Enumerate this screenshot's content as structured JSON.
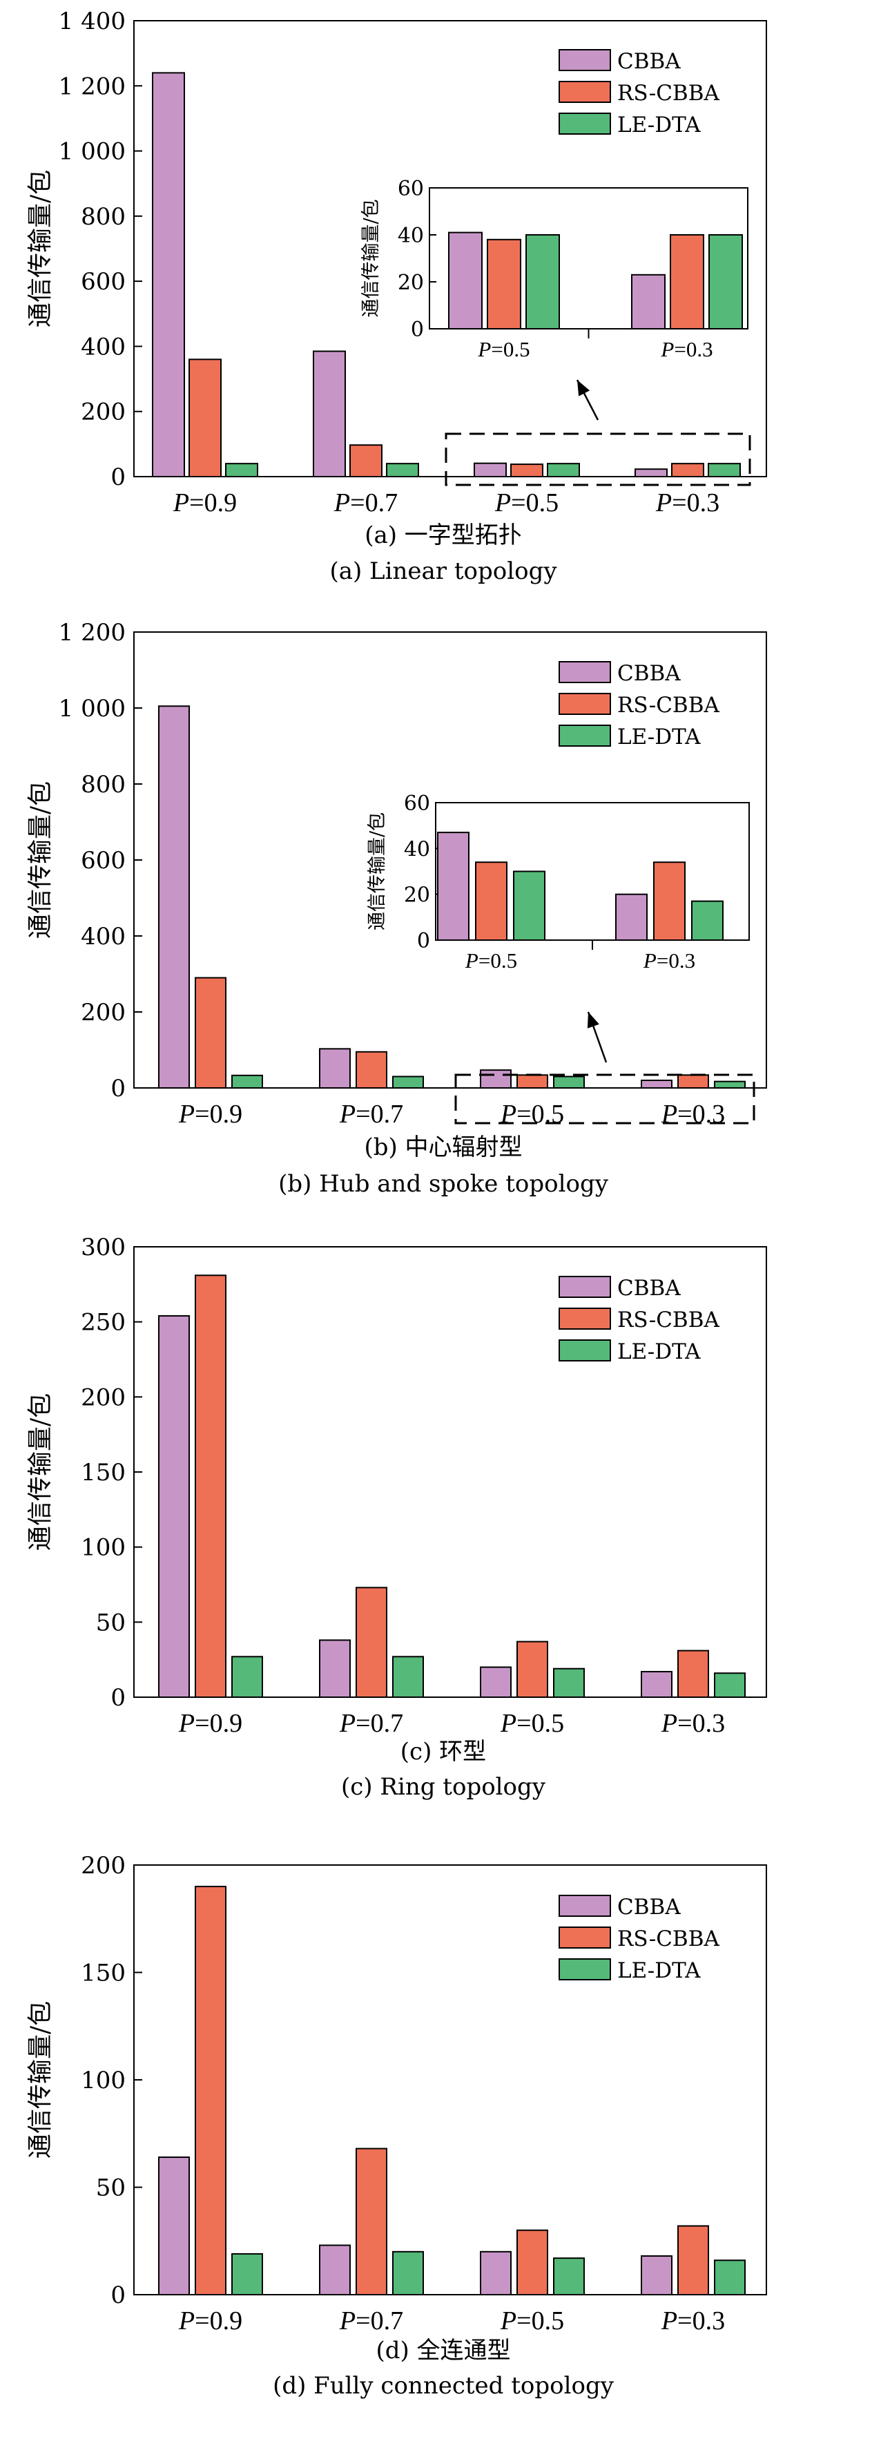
{
  "colors": {
    "CBBA": "#c796c6",
    "RS-CBBA": "#ee7156",
    "LE-DTA": "#55b979"
  },
  "legend": [
    "CBBA",
    "RS-CBBA",
    "LE-DTA"
  ],
  "chart_data": [
    {
      "type": "bar",
      "caption_cn": "(a) 一字型拓扑",
      "caption_en": "(a) Linear topology",
      "ylabel": "通信传输量/包",
      "categories": [
        "0.9",
        "0.7",
        "0.5",
        "0.3"
      ],
      "category_prefix": "P",
      "ylim": [
        0,
        1400
      ],
      "yticks": [
        "0",
        "200",
        "400",
        "600",
        "800",
        "1 000",
        "1 200",
        "1 400"
      ],
      "series": [
        {
          "name": "CBBA",
          "values": [
            1240,
            385,
            41,
            23
          ]
        },
        {
          "name": "RS-CBBA",
          "values": [
            360,
            97,
            38,
            40
          ]
        },
        {
          "name": "LE-DTA",
          "values": [
            40,
            40,
            40,
            40
          ]
        }
      ],
      "inset": {
        "ylabel": "通信传输量/包",
        "categories": [
          "0.5",
          "0.3"
        ],
        "ylim": [
          0,
          60
        ],
        "yticks": [
          "0",
          "20",
          "40",
          "60"
        ],
        "series": [
          {
            "name": "CBBA",
            "values": [
              41,
              23
            ]
          },
          {
            "name": "RS-CBBA",
            "values": [
              38,
              40
            ]
          },
          {
            "name": "LE-DTA",
            "values": [
              40,
              40
            ]
          }
        ]
      }
    },
    {
      "type": "bar",
      "caption_cn": "(b) 中心辐射型",
      "caption_en": "(b) Hub and spoke topology",
      "ylabel": "通信传输量/包",
      "categories": [
        "0.9",
        "0.7",
        "0.5",
        "0.3"
      ],
      "category_prefix": "P",
      "ylim": [
        0,
        1200
      ],
      "yticks": [
        "0",
        "200",
        "400",
        "600",
        "800",
        "1 000",
        "1 200"
      ],
      "series": [
        {
          "name": "CBBA",
          "values": [
            1005,
            103,
            47,
            20
          ]
        },
        {
          "name": "RS-CBBA",
          "values": [
            290,
            95,
            34,
            34
          ]
        },
        {
          "name": "LE-DTA",
          "values": [
            33,
            30,
            30,
            17
          ]
        }
      ],
      "inset": {
        "ylabel": "通信传输量/包",
        "categories": [
          "0.5",
          "0.3"
        ],
        "ylim": [
          0,
          60
        ],
        "yticks": [
          "0",
          "20",
          "40",
          "60"
        ],
        "series": [
          {
            "name": "CBBA",
            "values": [
              47,
              20
            ]
          },
          {
            "name": "RS-CBBA",
            "values": [
              34,
              34
            ]
          },
          {
            "name": "LE-DTA",
            "values": [
              30,
              17
            ]
          }
        ]
      }
    },
    {
      "type": "bar",
      "caption_cn": "(c) 环型",
      "caption_en": "(c) Ring topology",
      "ylabel": "通信传输量/包",
      "categories": [
        "0.9",
        "0.7",
        "0.5",
        "0.3"
      ],
      "category_prefix": "P",
      "ylim": [
        0,
        300
      ],
      "yticks": [
        "0",
        "50",
        "100",
        "150",
        "200",
        "250",
        "300"
      ],
      "series": [
        {
          "name": "CBBA",
          "values": [
            254,
            38,
            20,
            17
          ]
        },
        {
          "name": "RS-CBBA",
          "values": [
            281,
            73,
            37,
            31
          ]
        },
        {
          "name": "LE-DTA",
          "values": [
            27,
            27,
            19,
            16
          ]
        }
      ]
    },
    {
      "type": "bar",
      "caption_cn": "(d) 全连通型",
      "caption_en": "(d) Fully connected topology",
      "ylabel": "通信传输量/包",
      "categories": [
        "0.9",
        "0.7",
        "0.5",
        "0.3"
      ],
      "category_prefix": "P",
      "ylim": [
        0,
        200
      ],
      "yticks": [
        "0",
        "50",
        "100",
        "150",
        "200"
      ],
      "series": [
        {
          "name": "CBBA",
          "values": [
            64,
            23,
            20,
            18
          ]
        },
        {
          "name": "RS-CBBA",
          "values": [
            190,
            68,
            30,
            32
          ]
        },
        {
          "name": "LE-DTA",
          "values": [
            19,
            20,
            17,
            16
          ]
        }
      ]
    }
  ]
}
